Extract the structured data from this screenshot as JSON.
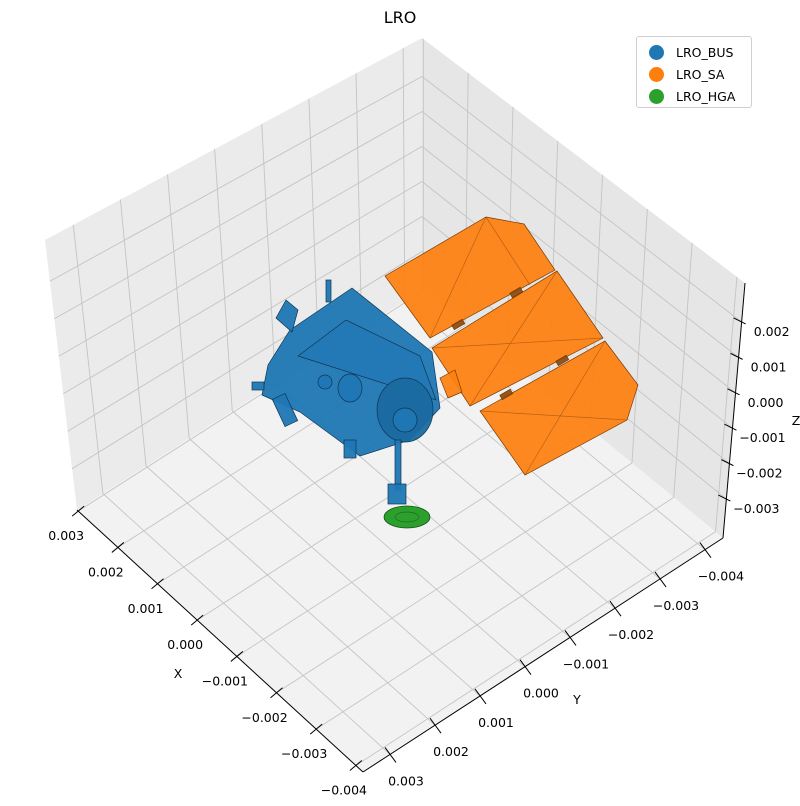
{
  "chart_data": {
    "type": "3d-mesh",
    "title": "LRO",
    "xlabel": "X",
    "ylabel": "Y",
    "zlabel": "Z",
    "xlim": [
      -0.00418,
      0.00303
    ],
    "ylim": [
      -0.0044,
      0.0036
    ],
    "zlim": [
      -0.0041,
      0.0031
    ],
    "xticks": [
      "0.003",
      "0.002",
      "0.001",
      "0.000",
      "−0.001",
      "−0.002",
      "−0.003",
      "−0.004"
    ],
    "xtick_values": [
      0.003,
      0.002,
      0.001,
      0.0,
      -0.001,
      -0.002,
      -0.003,
      -0.004
    ],
    "yticks": [
      "0.003",
      "0.002",
      "0.001",
      "0.000",
      "−0.001",
      "−0.002",
      "−0.003",
      "−0.004"
    ],
    "ytick_values": [
      0.003,
      0.002,
      0.001,
      0.0,
      -0.001,
      -0.002,
      -0.003,
      -0.004
    ],
    "zticks": [
      "0.002",
      "0.001",
      "0.000",
      "−0.001",
      "−0.002",
      "−0.003"
    ],
    "ztick_values": [
      0.002,
      0.001,
      0.0,
      -0.001,
      -0.002,
      -0.003
    ],
    "grid": true,
    "legend_position": "top-right",
    "series": [
      {
        "name": "LRO_BUS",
        "color": "#1f77b4"
      },
      {
        "name": "LRO_SA",
        "color": "#ff7f0e"
      },
      {
        "name": "LRO_HGA",
        "color": "#2ca02c"
      }
    ]
  }
}
